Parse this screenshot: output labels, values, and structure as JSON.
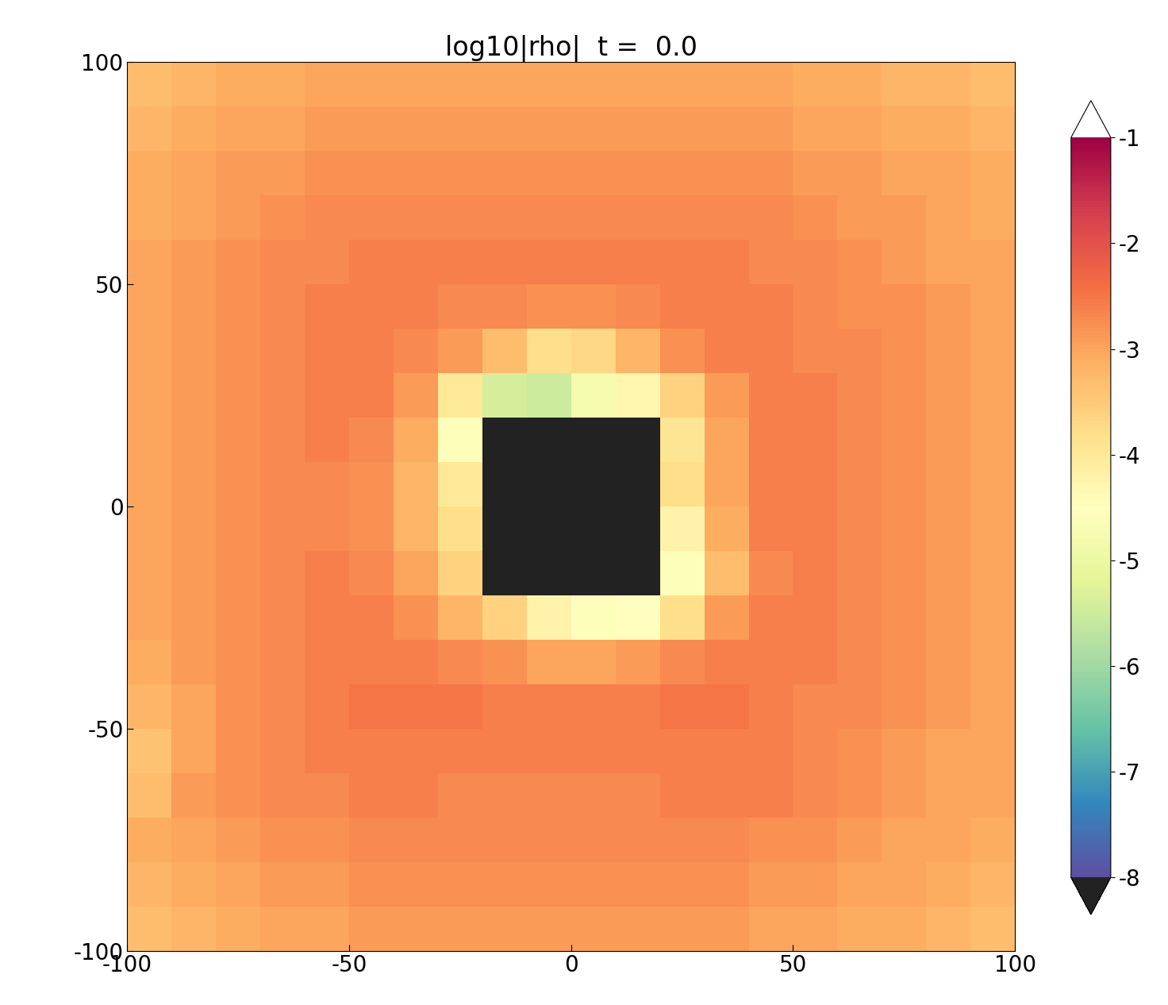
{
  "chart_data": {
    "type": "heatmap",
    "title": "log10|rho|  t =  0.0",
    "x": [
      -95,
      -85,
      -75,
      -65,
      -55,
      -45,
      -35,
      -25,
      -15,
      -5,
      5,
      15,
      25,
      35,
      45,
      55,
      65,
      75,
      85,
      95
    ],
    "y": [
      -95,
      -85,
      -75,
      -65,
      -55,
      -45,
      -35,
      -25,
      -15,
      -5,
      5,
      15,
      25,
      35,
      45,
      55,
      65,
      75,
      85,
      95
    ],
    "xlim": [
      -100,
      100
    ],
    "ylim": [
      -100,
      100
    ],
    "xticks": [
      -100,
      -50,
      0,
      50,
      100
    ],
    "yticks": [
      -100,
      -50,
      0,
      50,
      100
    ],
    "cells": [
      [
        -3.3,
        -3.2,
        -3.1,
        -3.0,
        -3.0,
        -2.9,
        -2.9,
        -2.9,
        -2.9,
        -2.9,
        -2.9,
        -2.9,
        -2.9,
        -2.9,
        -3.0,
        -3.0,
        -3.1,
        -3.1,
        -3.2,
        -3.3
      ],
      [
        -3.2,
        -3.1,
        -3.0,
        -2.9,
        -2.9,
        -2.8,
        -2.8,
        -2.8,
        -2.8,
        -2.8,
        -2.8,
        -2.8,
        -2.8,
        -2.8,
        -2.9,
        -2.9,
        -3.0,
        -3.0,
        -3.1,
        -3.2
      ],
      [
        -3.1,
        -3.0,
        -2.9,
        -2.8,
        -2.8,
        -2.7,
        -2.7,
        -2.7,
        -2.7,
        -2.7,
        -2.7,
        -2.7,
        -2.7,
        -2.7,
        -2.8,
        -2.8,
        -2.9,
        -3.0,
        -3.0,
        -3.1
      ],
      [
        -3.3,
        -2.9,
        -2.8,
        -2.7,
        -2.7,
        -2.6,
        -2.6,
        -2.7,
        -2.7,
        -2.7,
        -2.7,
        -2.7,
        -2.6,
        -2.6,
        -2.6,
        -2.7,
        -2.8,
        -2.9,
        -3.0,
        -3.0
      ],
      [
        -3.4,
        -3.0,
        -2.8,
        -2.7,
        -2.6,
        -2.6,
        -2.6,
        -2.6,
        -2.6,
        -2.6,
        -2.6,
        -2.6,
        -2.6,
        -2.6,
        -2.6,
        -2.7,
        -2.8,
        -2.9,
        -3.0,
        -3.0
      ],
      [
        -3.2,
        -3.0,
        -2.8,
        -2.7,
        -2.6,
        -2.5,
        -2.5,
        -2.5,
        -2.6,
        -2.6,
        -2.6,
        -2.6,
        -2.5,
        -2.5,
        -2.6,
        -2.7,
        -2.7,
        -2.8,
        -2.9,
        -3.0
      ],
      [
        -3.1,
        -2.9,
        -2.8,
        -2.7,
        -2.6,
        -2.6,
        -2.6,
        -2.7,
        -2.8,
        -3.0,
        -3.0,
        -2.9,
        -2.7,
        -2.6,
        -2.6,
        -2.6,
        -2.7,
        -2.8,
        -2.9,
        -3.0
      ],
      [
        -3.0,
        -2.9,
        -2.8,
        -2.7,
        -2.6,
        -2.6,
        -2.8,
        -3.2,
        -3.6,
        -4.2,
        -4.6,
        -4.5,
        -3.8,
        -2.9,
        -2.6,
        -2.6,
        -2.7,
        -2.8,
        -2.9,
        -3.0
      ],
      [
        -3.0,
        -2.9,
        -2.8,
        -2.7,
        -2.6,
        -2.7,
        -3.0,
        -3.6,
        -9.0,
        -9.0,
        -9.0,
        -9.0,
        -4.6,
        -3.3,
        -2.7,
        -2.6,
        -2.7,
        -2.8,
        -2.9,
        -3.0
      ],
      [
        -3.0,
        -2.9,
        -2.8,
        -2.7,
        -2.7,
        -2.8,
        -3.2,
        -3.8,
        -9.0,
        -9.0,
        -9.0,
        -9.0,
        -4.2,
        -3.1,
        -2.6,
        -2.6,
        -2.7,
        -2.8,
        -2.9,
        -3.0
      ],
      [
        -3.0,
        -2.9,
        -2.8,
        -2.7,
        -2.7,
        -2.8,
        -3.2,
        -4.0,
        -9.0,
        -9.0,
        -9.0,
        -9.0,
        -3.8,
        -3.0,
        -2.6,
        -2.6,
        -2.7,
        -2.8,
        -2.9,
        -3.0
      ],
      [
        -3.0,
        -2.9,
        -2.8,
        -2.7,
        -2.6,
        -2.7,
        -3.1,
        -4.6,
        -9.0,
        -9.0,
        -9.0,
        -9.0,
        -3.9,
        -3.0,
        -2.6,
        -2.6,
        -2.7,
        -2.8,
        -2.9,
        -3.0
      ],
      [
        -3.0,
        -2.9,
        -2.8,
        -2.7,
        -2.6,
        -2.6,
        -2.9,
        -4.0,
        -5.4,
        -5.5,
        -4.8,
        -4.3,
        -3.6,
        -2.9,
        -2.6,
        -2.6,
        -2.7,
        -2.8,
        -2.9,
        -3.0
      ],
      [
        -3.0,
        -2.9,
        -2.8,
        -2.7,
        -2.6,
        -2.6,
        -2.7,
        -2.9,
        -3.3,
        -3.8,
        -3.7,
        -3.2,
        -2.8,
        -2.6,
        -2.6,
        -2.7,
        -2.7,
        -2.8,
        -2.9,
        -3.0
      ],
      [
        -3.0,
        -2.9,
        -2.8,
        -2.7,
        -2.6,
        -2.6,
        -2.6,
        -2.7,
        -2.7,
        -2.8,
        -2.8,
        -2.7,
        -2.6,
        -2.6,
        -2.6,
        -2.7,
        -2.8,
        -2.8,
        -2.9,
        -3.0
      ],
      [
        -3.0,
        -2.9,
        -2.8,
        -2.7,
        -2.7,
        -2.6,
        -2.6,
        -2.6,
        -2.6,
        -2.6,
        -2.6,
        -2.6,
        -2.6,
        -2.6,
        -2.7,
        -2.7,
        -2.8,
        -2.9,
        -3.0,
        -3.0
      ],
      [
        -3.1,
        -3.0,
        -2.9,
        -2.8,
        -2.7,
        -2.7,
        -2.7,
        -2.7,
        -2.7,
        -2.7,
        -2.7,
        -2.7,
        -2.7,
        -2.7,
        -2.7,
        -2.8,
        -2.9,
        -2.9,
        -3.0,
        -3.1
      ],
      [
        -3.1,
        -3.0,
        -2.9,
        -2.9,
        -2.8,
        -2.8,
        -2.8,
        -2.8,
        -2.8,
        -2.8,
        -2.8,
        -2.8,
        -2.8,
        -2.8,
        -2.8,
        -2.9,
        -2.9,
        -3.0,
        -3.0,
        -3.1
      ],
      [
        -3.2,
        -3.1,
        -3.0,
        -3.0,
        -2.9,
        -2.9,
        -2.9,
        -2.9,
        -2.9,
        -2.9,
        -2.9,
        -2.9,
        -2.9,
        -2.9,
        -2.9,
        -3.0,
        -3.0,
        -3.1,
        -3.1,
        -3.2
      ],
      [
        -3.3,
        -3.2,
        -3.1,
        -3.1,
        -3.0,
        -3.0,
        -3.0,
        -3.0,
        -3.0,
        -3.0,
        -3.0,
        -3.0,
        -3.0,
        -3.0,
        -3.0,
        -3.1,
        -3.1,
        -3.2,
        -3.2,
        -3.3
      ]
    ],
    "colorbar_range": [
      -8,
      -1
    ],
    "colorbar_ticks": [
      -1,
      -2,
      -3,
      -4,
      -5,
      -6,
      -7,
      -8
    ]
  }
}
